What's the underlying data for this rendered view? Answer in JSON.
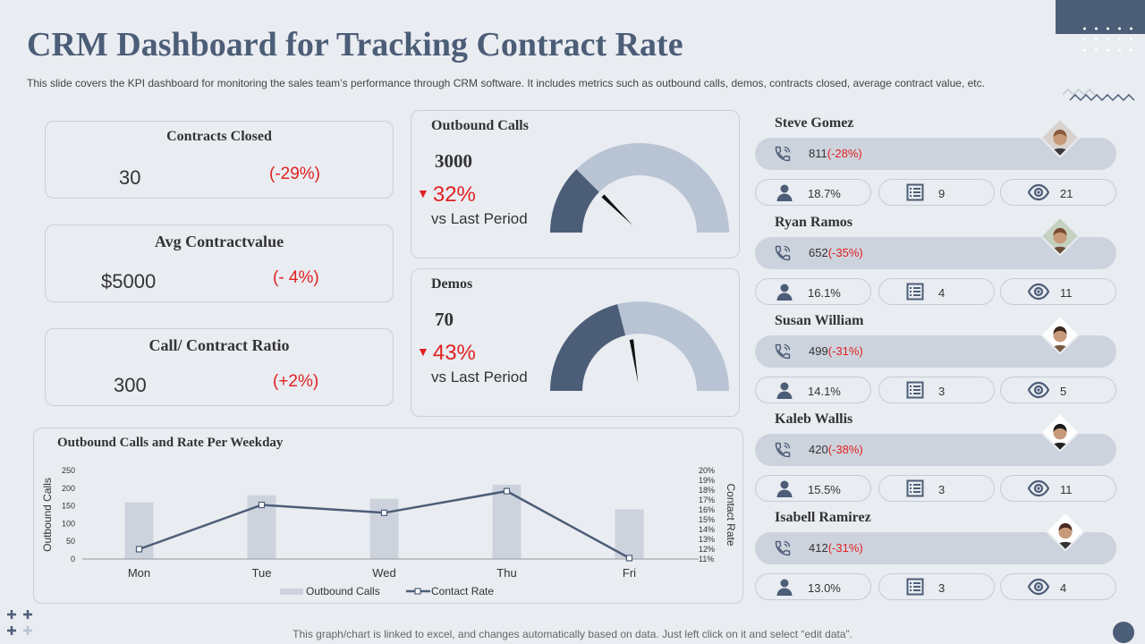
{
  "title": "CRM Dashboard for Tracking Contract Rate",
  "subtitle": "This slide covers the KPI dashboard for monitoring the sales team’s performance through CRM software. It includes metrics such as outbound calls, demos, contracts closed, average contract value, etc.",
  "kpis": [
    {
      "title": "Contracts Closed",
      "value": "30",
      "change": "(-29%)"
    },
    {
      "title": "Avg Contractvalue",
      "value": "$5000",
      "change": "(- 4%)"
    },
    {
      "title": "Call/ Contract Ratio",
      "value": "300",
      "change": "(+2%)"
    }
  ],
  "gauges": [
    {
      "title": "Outbound Calls",
      "value": "3000",
      "change": "32%",
      "caption": "vs Last Period",
      "fill_fraction": 0.25,
      "needle_fraction": 0.25
    },
    {
      "title": "Demos",
      "value": "70",
      "change": "43%",
      "caption": "vs Last Period",
      "fill_fraction": 0.42,
      "needle_fraction": 0.45
    }
  ],
  "chart_data": {
    "type": "bar",
    "title": "Outbound Calls and Rate Per Weekday",
    "categories": [
      "Mon",
      "Tue",
      "Wed",
      "Thu",
      "Fri"
    ],
    "series": [
      {
        "name": "Outbound Calls",
        "type": "bar",
        "axis": "left",
        "values": [
          160,
          180,
          170,
          210,
          140
        ]
      },
      {
        "name": "Contact Rate",
        "type": "line",
        "axis": "right",
        "values": [
          12.0,
          16.5,
          15.7,
          17.9,
          11.1
        ]
      }
    ],
    "ylabel": "Outbound Calls",
    "y2label": "Contact Rate",
    "ylim": [
      0,
      250
    ],
    "y_ticks": [
      "0",
      "50",
      "100",
      "150",
      "200",
      "250"
    ],
    "y2lim": [
      11,
      20
    ],
    "y2_ticks": [
      "11%",
      "12%",
      "13%",
      "14%",
      "15%",
      "16%",
      "17%",
      "18%",
      "19%",
      "20%"
    ],
    "legend": [
      "Outbound Calls",
      "Contact Rate"
    ],
    "legend_position": "bottom"
  },
  "people": [
    {
      "name": "Steve Gomez",
      "calls": "811",
      "change": "(-28%)",
      "rate": "18.7%",
      "list_count": "9",
      "views": "21"
    },
    {
      "name": "Ryan Ramos",
      "calls": "652",
      "change": "(-35%)",
      "rate": "16.1%",
      "list_count": "4",
      "views": "11"
    },
    {
      "name": "Susan William",
      "calls": "499",
      "change": "(-31%)",
      "rate": "14.1%",
      "list_count": "3",
      "views": "5"
    },
    {
      "name": "Kaleb Wallis",
      "calls": "420",
      "change": "(-38%)",
      "rate": "15.5%",
      "list_count": "3",
      "views": "11"
    },
    {
      "name": "Isabell Ramirez",
      "calls": "412",
      "change": "(-31%)",
      "rate": "13.0%",
      "list_count": "3",
      "views": "4"
    }
  ],
  "footer": "This graph/chart is linked to excel,  and changes automatically based on data. Just left click on it and select “edit data”.",
  "colors": {
    "accent": "#4c5d77",
    "gauge_light": "#b8c4d4",
    "negative": "#e02020",
    "bar": "#cdd3dd"
  },
  "icons": {
    "phone": "phone-icon",
    "person": "person-icon",
    "list": "list-icon",
    "eye": "eye-icon"
  }
}
